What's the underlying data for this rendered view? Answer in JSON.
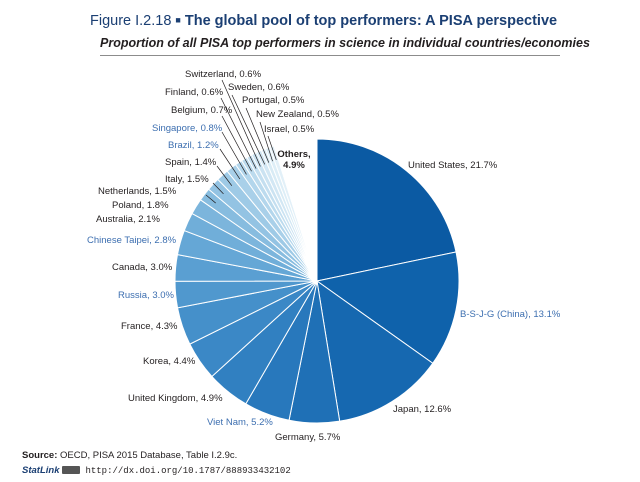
{
  "figure": {
    "number": "Figure I.2.18",
    "separator": "■",
    "title": "The global pool of top performers: A PISA perspective",
    "subtitle": "Proportion of all PISA top performers in science in individual countries/economies"
  },
  "chart_data": {
    "type": "pie",
    "title": "The global pool of top performers: A PISA perspective",
    "unit": "%",
    "slices": [
      {
        "label": "United States, 21.7%",
        "value": 21.7,
        "color": "#0b5aa3",
        "label_color": "#231f20"
      },
      {
        "label": "B-S-J-G (China), 13.1%",
        "value": 13.1,
        "color": "#0f62ab",
        "label_color": "#3d6fb0"
      },
      {
        "label": "Japan, 12.6%",
        "value": 12.6,
        "color": "#1668b0",
        "label_color": "#231f20"
      },
      {
        "label": "Germany, 5.7%",
        "value": 5.7,
        "color": "#1f70b6",
        "label_color": "#231f20"
      },
      {
        "label": "Viet Nam, 5.2%",
        "value": 5.2,
        "color": "#2878bc",
        "label_color": "#3d6fb0"
      },
      {
        "label": "United Kingdom, 4.9%",
        "value": 4.9,
        "color": "#3180c1",
        "label_color": "#231f20"
      },
      {
        "label": "Korea, 4.4%",
        "value": 4.4,
        "color": "#3b88c6",
        "label_color": "#231f20"
      },
      {
        "label": "France, 4.3%",
        "value": 4.3,
        "color": "#4590ca",
        "label_color": "#231f20"
      },
      {
        "label": "Russia, 3.0%",
        "value": 3.0,
        "color": "#5098ce",
        "label_color": "#3d6fb0"
      },
      {
        "label": "Canada, 3.0%",
        "value": 3.0,
        "color": "#5a9fd2",
        "label_color": "#231f20"
      },
      {
        "label": "Chinese Taipei, 2.8%",
        "value": 2.8,
        "color": "#65a7d6",
        "label_color": "#3d6fb0"
      },
      {
        "label": "Australia, 2.1%",
        "value": 2.1,
        "color": "#70aed9",
        "label_color": "#231f20"
      },
      {
        "label": "Poland, 1.8%",
        "value": 1.8,
        "color": "#7cb5dc",
        "label_color": "#231f20"
      },
      {
        "label": "Netherlands, 1.5%",
        "value": 1.5,
        "color": "#87bcdf",
        "label_color": "#231f20"
      },
      {
        "label": "Italy, 1.5%",
        "value": 1.5,
        "color": "#93c3e3",
        "label_color": "#231f20"
      },
      {
        "label": "Spain, 1.4%",
        "value": 1.4,
        "color": "#9ecae6",
        "label_color": "#231f20"
      },
      {
        "label": "Brazil, 1.2%",
        "value": 1.2,
        "color": "#a9d0e9",
        "label_color": "#3d6fb0"
      },
      {
        "label": "Singapore, 0.8%",
        "value": 0.8,
        "color": "#b3d6ec",
        "label_color": "#3d6fb0"
      },
      {
        "label": "Belgium, 0.7%",
        "value": 0.7,
        "color": "#bcdbee",
        "label_color": "#231f20"
      },
      {
        "label": "Finland, 0.6%",
        "value": 0.6,
        "color": "#c4dff0",
        "label_color": "#231f20"
      },
      {
        "label": "Switzerland, 0.6%",
        "value": 0.6,
        "color": "#cbe3f2",
        "label_color": "#231f20"
      },
      {
        "label": "Sweden, 0.6%",
        "value": 0.6,
        "color": "#d2e7f4",
        "label_color": "#231f20"
      },
      {
        "label": "Portugal, 0.5%",
        "value": 0.5,
        "color": "#d8ebf5",
        "label_color": "#231f20"
      },
      {
        "label": "New Zealand, 0.5%",
        "value": 0.5,
        "color": "#ddeef7",
        "label_color": "#231f20"
      },
      {
        "label": "Israel, 0.5%",
        "value": 0.5,
        "color": "#e2f0f8",
        "label_color": "#231f20"
      },
      {
        "label": "Others,\n4.9%",
        "value": 4.9,
        "color": "#ffffff",
        "label_color": "#231f20"
      }
    ]
  },
  "footer": {
    "source_prefix": "Source:",
    "source_text": "OECD, PISA 2015 Database, Table I.2.9c.",
    "statlink": "StatLink",
    "url": "http://dx.doi.org/10.1787/888933432102"
  }
}
